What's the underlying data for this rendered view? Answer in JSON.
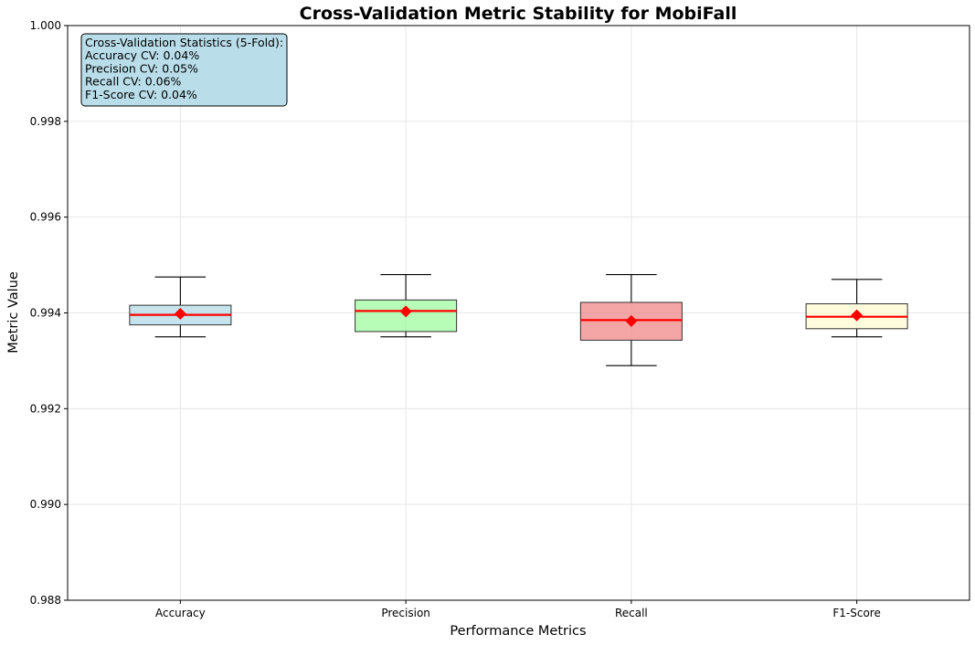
{
  "chart_data": {
    "type": "box",
    "title": "Cross-Validation Metric Stability for MobiFall",
    "xlabel": "Performance Metrics",
    "ylabel": "Metric Value",
    "ylim": [
      0.988,
      1.0
    ],
    "yticks": [
      "0.988",
      "0.990",
      "0.992",
      "0.994",
      "0.996",
      "0.998",
      "1.000"
    ],
    "ytick_values": [
      0.988,
      0.99,
      0.992,
      0.994,
      0.996,
      0.998,
      1.0
    ],
    "grid": true,
    "categories": [
      "Accuracy",
      "Precision",
      "Recall",
      "F1-Score"
    ],
    "boxes": [
      {
        "name": "Accuracy",
        "whisker_low": 0.9935,
        "q1": 0.99375,
        "median": 0.99396,
        "q3": 0.99416,
        "whisker_high": 0.99475,
        "mean": 0.99398,
        "color": "#add8e6"
      },
      {
        "name": "Precision",
        "whisker_low": 0.9935,
        "q1": 0.99361,
        "median": 0.99404,
        "q3": 0.99427,
        "whisker_high": 0.9948,
        "mean": 0.99403,
        "color": "#98fb98"
      },
      {
        "name": "Recall",
        "whisker_low": 0.9929,
        "q1": 0.99343,
        "median": 0.99385,
        "q3": 0.99422,
        "whisker_high": 0.9948,
        "mean": 0.99383,
        "color": "#f08080"
      },
      {
        "name": "F1-Score",
        "whisker_low": 0.9935,
        "q1": 0.99367,
        "median": 0.99392,
        "q3": 0.99419,
        "whisker_high": 0.9947,
        "mean": 0.99395,
        "color": "#fffacd"
      }
    ],
    "median_color": "#ff0000",
    "mean_marker_color": "#ff0000",
    "stats_box": {
      "lines": [
        "Cross-Validation Statistics (5-Fold):",
        "Accuracy CV: 0.04%",
        "Precision CV: 0.05%",
        "Recall CV: 0.06%",
        "F1-Score CV: 0.04%"
      ],
      "background": "#add8e6",
      "position": "top-left"
    }
  }
}
